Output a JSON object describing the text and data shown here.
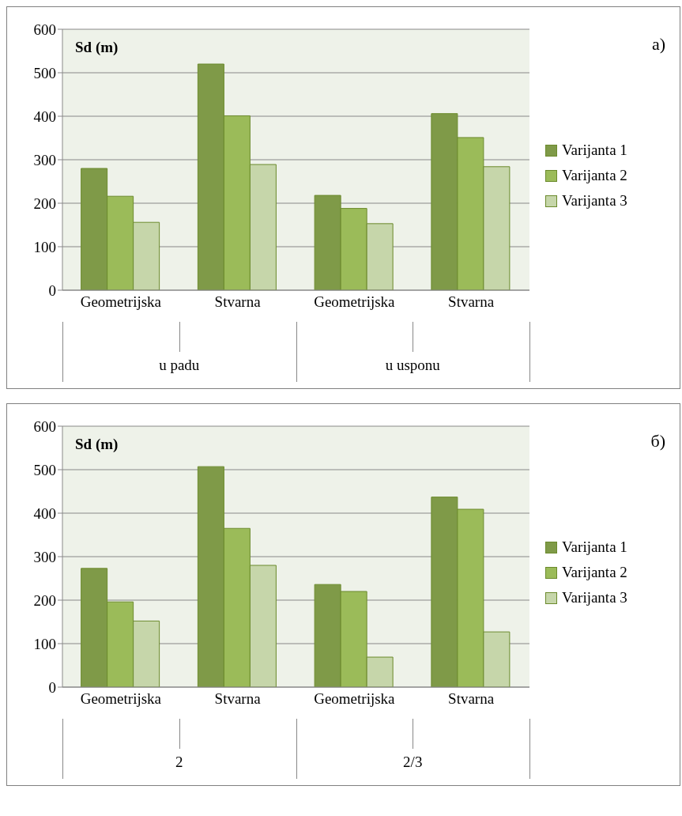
{
  "chart_data": [
    {
      "type": "bar",
      "ylabel": "Sd (m)",
      "categories": [
        "Geometrijska",
        "Stvarna",
        "Geometrijska",
        "Stvarna"
      ],
      "ylim": [
        0,
        600
      ],
      "yticks": [
        0,
        100,
        200,
        300,
        400,
        500,
        600
      ],
      "grid": "y",
      "legend": "right",
      "annotations": [
        "a)",
        "u padu",
        "u usponu"
      ],
      "series": [
        {
          "name": "Varijanta 1",
          "color": "#7f9a48",
          "values": [
            280,
            520,
            218,
            406
          ]
        },
        {
          "name": "Varijanta 2",
          "color": "#9bbb59",
          "values": [
            216,
            401,
            188,
            351
          ]
        },
        {
          "name": "Varijanta 3",
          "color": "#c6d6aa",
          "values": [
            156,
            289,
            153,
            284
          ]
        }
      ]
    },
    {
      "type": "bar",
      "ylabel": "Sd (m)",
      "categories": [
        "Geometrijska",
        "Stvarna",
        "Geometrijska",
        "Stvarna"
      ],
      "ylim": [
        0,
        600
      ],
      "yticks": [
        0,
        100,
        200,
        300,
        400,
        500,
        600
      ],
      "grid": "y",
      "legend": "right",
      "annotations": [
        "б)",
        "2",
        "2/3"
      ],
      "series": [
        {
          "name": "Varijanta 1",
          "color": "#7f9a48",
          "values": [
            273,
            507,
            236,
            437
          ]
        },
        {
          "name": "Varijanta 2",
          "color": "#9bbb59",
          "values": [
            196,
            365,
            220,
            409
          ]
        },
        {
          "name": "Varijanta 3",
          "color": "#c6d6aa",
          "values": [
            152,
            280,
            69,
            127
          ]
        }
      ]
    }
  ]
}
